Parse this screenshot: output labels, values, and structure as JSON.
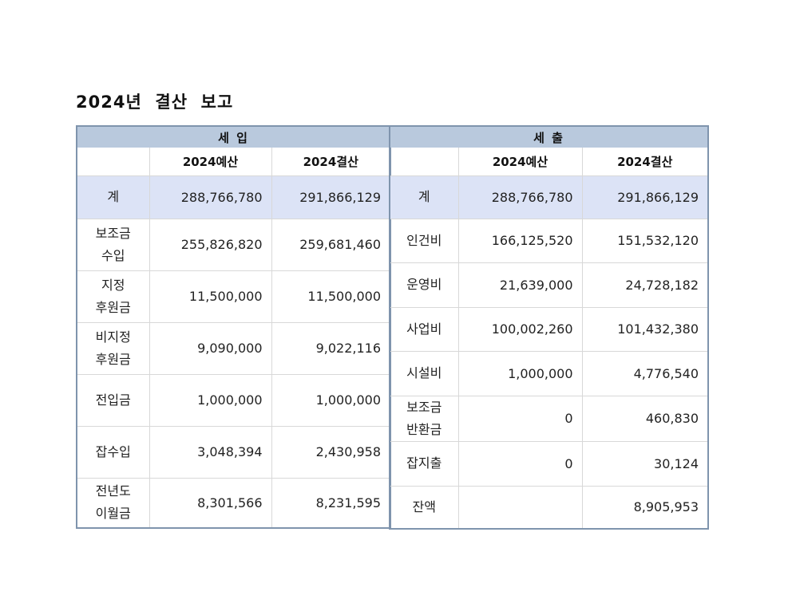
{
  "title": "2024년  결산  보고",
  "revenue": {
    "header": "세 입",
    "col_budget": "2024예산",
    "col_settle": "2024결산",
    "rows": [
      {
        "label": "계",
        "budget": "288,766,780",
        "settle": "291,866,129"
      },
      {
        "label": "보조금\n수입",
        "budget": "255,826,820",
        "settle": "259,681,460"
      },
      {
        "label": "지정\n후원금",
        "budget": "11,500,000",
        "settle": "11,500,000"
      },
      {
        "label": "비지정\n후원금",
        "budget": "9,090,000",
        "settle": "9,022,116"
      },
      {
        "label": "전입금",
        "budget": "1,000,000",
        "settle": "1,000,000"
      },
      {
        "label": "잡수입",
        "budget": "3,048,394",
        "settle": "2,430,958"
      },
      {
        "label": "전년도\n이월금",
        "budget": "8,301,566",
        "settle": "8,231,595"
      }
    ]
  },
  "expense": {
    "header": "세 출",
    "col_budget": "2024예산",
    "col_settle": "2024결산",
    "rows": [
      {
        "label": "계",
        "budget": "288,766,780",
        "settle": "291,866,129"
      },
      {
        "label": "인건비",
        "budget": "166,125,520",
        "settle": "151,532,120"
      },
      {
        "label": "운영비",
        "budget": "21,639,000",
        "settle": "24,728,182"
      },
      {
        "label": "사업비",
        "budget": "100,002,260",
        "settle": "101,432,380"
      },
      {
        "label": "시설비",
        "budget": "1,000,000",
        "settle": "4,776,540"
      },
      {
        "label": "보조금\n반환금",
        "budget": "0",
        "settle": "460,830"
      },
      {
        "label": "잡지출",
        "budget": "0",
        "settle": "30,124"
      },
      {
        "label": "잔액",
        "budget": "",
        "settle": "8,905,953"
      }
    ]
  }
}
